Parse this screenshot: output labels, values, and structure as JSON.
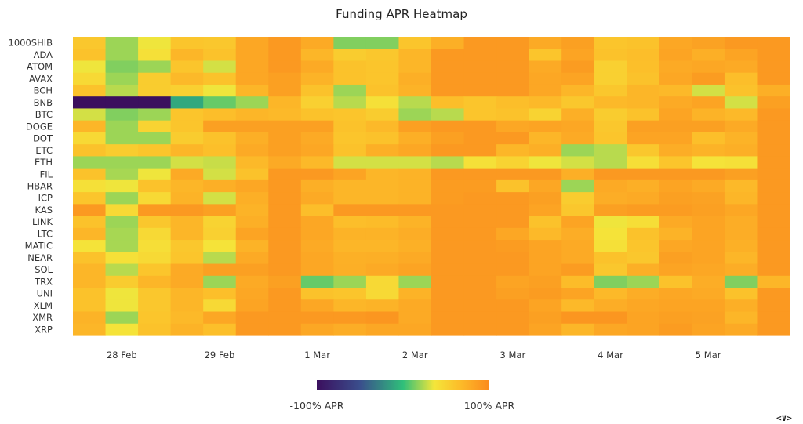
{
  "chart_data": {
    "type": "heatmap",
    "title": "Funding APR Heatmap",
    "rows": [
      "1000SHIB",
      "ADA",
      "ATOM",
      "AVAX",
      "BCH",
      "BNB",
      "BTC",
      "DOGE",
      "DOT",
      "ETC",
      "ETH",
      "FIL",
      "HBAR",
      "ICP",
      "KAS",
      "LINK",
      "LTC",
      "MATIC",
      "NEAR",
      "SOL",
      "TRX",
      "UNI",
      "XLM",
      "XMR",
      "XRP"
    ],
    "x_ticks": [
      {
        "label": "28 Feb",
        "col": 1.5
      },
      {
        "label": "29 Feb",
        "col": 4.5
      },
      {
        "label": "1 Mar",
        "col": 7.5
      },
      {
        "label": "2 Mar",
        "col": 10.5
      },
      {
        "label": "3 Mar",
        "col": 13.5
      },
      {
        "label": "4 Mar",
        "col": 16.5
      },
      {
        "label": "5 Mar",
        "col": 19.5
      }
    ],
    "num_columns": 22,
    "value_range": [
      -100,
      100
    ],
    "colorscale": "viridis-plasma (purple -100% → green → yellow → orange 100%)",
    "legend": {
      "min_label": "-100% APR",
      "max_label": "100% APR",
      "position": "bottom-center"
    },
    "values": [
      [
        58,
        20,
        35,
        60,
        58,
        80,
        90,
        78,
        15,
        15,
        60,
        75,
        90,
        90,
        78,
        85,
        60,
        62,
        80,
        84,
        90,
        90
      ],
      [
        62,
        20,
        40,
        70,
        62,
        80,
        90,
        70,
        55,
        58,
        70,
        90,
        90,
        90,
        60,
        82,
        62,
        65,
        82,
        75,
        82,
        90
      ],
      [
        35,
        15,
        20,
        60,
        30,
        80,
        90,
        78,
        62,
        60,
        70,
        90,
        90,
        90,
        78,
        88,
        52,
        64,
        78,
        80,
        78,
        90
      ],
      [
        45,
        20,
        55,
        68,
        62,
        80,
        85,
        72,
        62,
        60,
        75,
        90,
        90,
        90,
        80,
        82,
        52,
        62,
        80,
        88,
        65,
        90
      ],
      [
        62,
        25,
        55,
        52,
        35,
        70,
        85,
        62,
        20,
        62,
        72,
        90,
        90,
        90,
        80,
        70,
        58,
        70,
        68,
        30,
        62,
        75
      ],
      [
        -100,
        -100,
        -100,
        -10,
        10,
        20,
        70,
        52,
        25,
        40,
        25,
        65,
        60,
        65,
        68,
        58,
        68,
        70,
        78,
        82,
        30,
        85
      ],
      [
        30,
        15,
        20,
        60,
        65,
        70,
        68,
        62,
        60,
        55,
        20,
        25,
        60,
        62,
        50,
        75,
        55,
        62,
        82,
        72,
        68,
        90
      ],
      [
        70,
        20,
        50,
        60,
        85,
        85,
        85,
        85,
        62,
        68,
        85,
        90,
        90,
        80,
        82,
        80,
        58,
        85,
        85,
        85,
        78,
        90
      ],
      [
        45,
        20,
        20,
        55,
        62,
        75,
        85,
        78,
        60,
        62,
        75,
        85,
        90,
        90,
        70,
        78,
        60,
        82,
        82,
        64,
        72,
        90
      ],
      [
        62,
        55,
        60,
        70,
        64,
        78,
        85,
        80,
        62,
        75,
        80,
        90,
        90,
        70,
        75,
        20,
        25,
        58,
        76,
        72,
        75,
        90
      ],
      [
        20,
        20,
        20,
        30,
        28,
        68,
        78,
        68,
        30,
        30,
        30,
        25,
        40,
        50,
        35,
        30,
        25,
        42,
        60,
        38,
        40,
        90
      ],
      [
        62,
        22,
        35,
        78,
        30,
        62,
        90,
        90,
        82,
        70,
        72,
        90,
        90,
        90,
        90,
        75,
        90,
        90,
        90,
        90,
        85,
        90
      ],
      [
        40,
        35,
        62,
        70,
        75,
        80,
        90,
        75,
        70,
        70,
        72,
        88,
        88,
        62,
        80,
        20,
        78,
        75,
        82,
        78,
        68,
        90
      ],
      [
        60,
        20,
        45,
        72,
        30,
        75,
        90,
        78,
        70,
        70,
        72,
        88,
        90,
        90,
        85,
        55,
        76,
        78,
        85,
        84,
        70,
        90
      ],
      [
        90,
        45,
        90,
        90,
        85,
        72,
        90,
        65,
        90,
        90,
        90,
        90,
        90,
        90,
        82,
        58,
        85,
        88,
        88,
        85,
        80,
        90
      ],
      [
        62,
        20,
        58,
        70,
        50,
        75,
        90,
        80,
        65,
        66,
        72,
        90,
        90,
        90,
        62,
        82,
        35,
        42,
        78,
        82,
        76,
        90
      ],
      [
        70,
        22,
        45,
        70,
        52,
        82,
        90,
        80,
        72,
        72,
        76,
        90,
        90,
        80,
        68,
        76,
        38,
        62,
        72,
        82,
        76,
        90
      ],
      [
        38,
        22,
        42,
        58,
        38,
        72,
        90,
        78,
        70,
        70,
        74,
        90,
        90,
        88,
        82,
        78,
        40,
        60,
        80,
        82,
        74,
        90
      ],
      [
        62,
        40,
        45,
        60,
        25,
        78,
        90,
        80,
        74,
        75,
        78,
        90,
        90,
        90,
        82,
        78,
        62,
        58,
        85,
        82,
        70,
        90
      ],
      [
        70,
        25,
        60,
        78,
        85,
        85,
        90,
        80,
        75,
        78,
        82,
        90,
        90,
        90,
        82,
        88,
        58,
        75,
        82,
        80,
        76,
        90
      ],
      [
        70,
        55,
        70,
        78,
        20,
        78,
        85,
        10,
        20,
        45,
        20,
        90,
        90,
        82,
        85,
        66,
        15,
        20,
        62,
        76,
        15,
        70
      ],
      [
        62,
        35,
        58,
        70,
        64,
        80,
        90,
        62,
        60,
        45,
        72,
        90,
        90,
        85,
        88,
        82,
        68,
        76,
        80,
        78,
        62,
        90
      ],
      [
        62,
        35,
        58,
        70,
        45,
        82,
        90,
        80,
        70,
        72,
        78,
        90,
        90,
        90,
        82,
        68,
        76,
        80,
        82,
        82,
        75,
        90
      ],
      [
        72,
        20,
        60,
        68,
        80,
        90,
        90,
        90,
        90,
        92,
        78,
        90,
        90,
        90,
        85,
        92,
        92,
        82,
        85,
        84,
        70,
        90
      ],
      [
        70,
        38,
        62,
        72,
        64,
        90,
        90,
        80,
        76,
        80,
        80,
        90,
        90,
        90,
        82,
        70,
        80,
        82,
        88,
        82,
        78,
        90
      ]
    ]
  },
  "nav": {
    "label": "<∨>"
  }
}
